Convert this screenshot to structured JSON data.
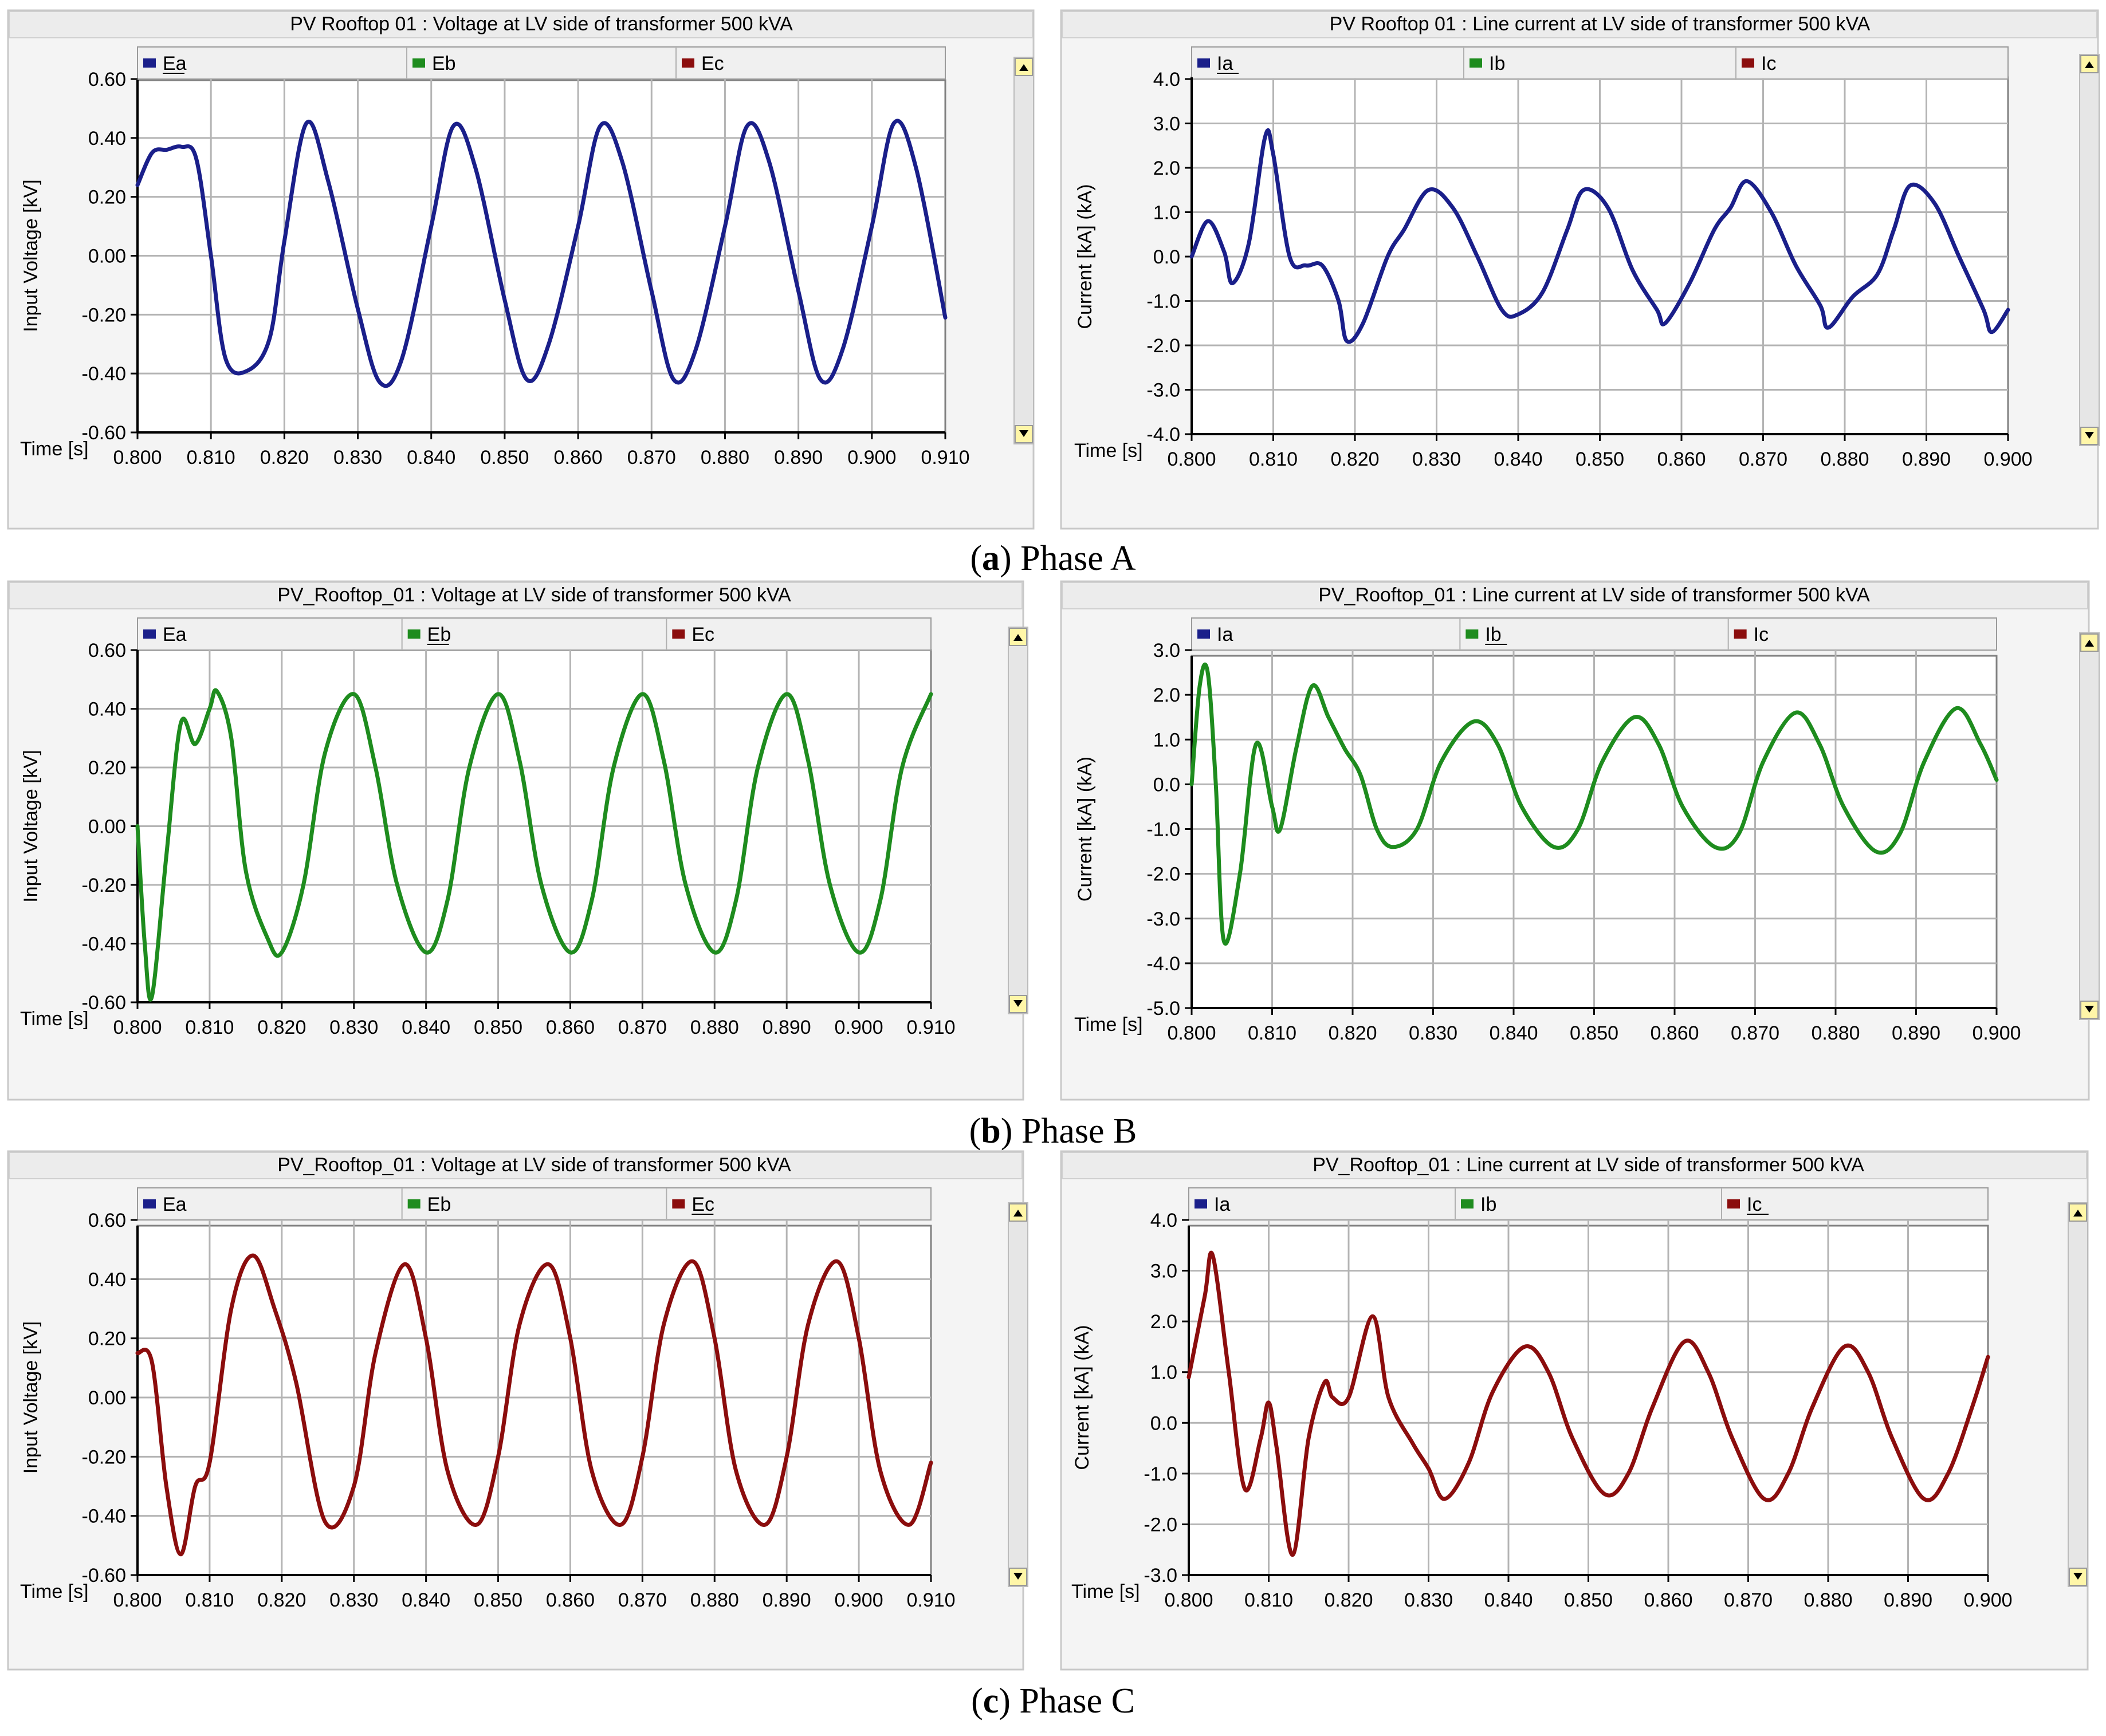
{
  "colors": {
    "a": "#1a1f8a",
    "b": "#1e8c1e",
    "c": "#8b0d0d"
  },
  "captions": [
    {
      "letter": "a",
      "text": " Phase A"
    },
    {
      "letter": "b",
      "text": " Phase B"
    },
    {
      "letter": "c",
      "text": " Phase C"
    }
  ],
  "chart_data": [
    {
      "type": "line",
      "title": "PV  Rooftop  01 : Voltage at LV side of transformer 500 kVA",
      "xlabel": "Time [s]",
      "ylabel": "Input Voltage [kV]",
      "xlim": [
        0.8,
        0.91
      ],
      "ylim": [
        -0.6,
        0.6
      ],
      "xticks": [
        "0.800",
        "0.810",
        "0.820",
        "0.830",
        "0.840",
        "0.850",
        "0.860",
        "0.870",
        "0.880",
        "0.890",
        "0.900",
        "0.910"
      ],
      "yticks": [
        "0.60",
        "0.40",
        "0.20",
        "0.00",
        "-0.20",
        "-0.40",
        "-0.60"
      ],
      "legend": [
        "Ea",
        "Eb",
        "Ec"
      ],
      "active": 0,
      "color_key": "a",
      "series": [
        {
          "name": "Ea",
          "x": [
            0.8,
            0.802,
            0.804,
            0.806,
            0.808,
            0.81,
            0.812,
            0.815,
            0.818,
            0.82,
            0.823,
            0.826,
            0.83,
            0.833,
            0.836,
            0.84,
            0.843,
            0.846,
            0.85,
            0.853,
            0.856,
            0.86,
            0.863,
            0.866,
            0.87,
            0.873,
            0.876,
            0.88,
            0.883,
            0.886,
            0.89,
            0.893,
            0.896,
            0.9,
            0.903,
            0.906,
            0.91
          ],
          "y": [
            0.24,
            0.35,
            0.36,
            0.37,
            0.33,
            0.0,
            -0.35,
            -0.39,
            -0.28,
            0.05,
            0.45,
            0.25,
            -0.18,
            -0.43,
            -0.35,
            0.1,
            0.44,
            0.3,
            -0.15,
            -0.42,
            -0.3,
            0.1,
            0.44,
            0.32,
            -0.12,
            -0.42,
            -0.32,
            0.1,
            0.44,
            0.32,
            -0.12,
            -0.42,
            -0.32,
            0.1,
            0.45,
            0.3,
            -0.21
          ]
        }
      ]
    },
    {
      "type": "line",
      "title": "PV  Rooftop  01 : Line current at LV side of transformer 500 kVA",
      "xlabel": "Time [s]",
      "ylabel": "Current [kA] (kA)",
      "xlim": [
        0.8,
        0.9
      ],
      "ylim": [
        -4.0,
        4.0
      ],
      "xticks": [
        "0.800",
        "0.810",
        "0.820",
        "0.830",
        "0.840",
        "0.850",
        "0.860",
        "0.870",
        "0.880",
        "0.890",
        "0.900"
      ],
      "yticks": [
        "4.0",
        "3.0",
        "2.0",
        "1.0",
        "0.0",
        "-1.0",
        "-2.0",
        "-3.0",
        "-4.0"
      ],
      "legend": [
        "Ia",
        "Ib",
        "Ic"
      ],
      "active": 0,
      "color_key": "a",
      "series": [
        {
          "name": "Ia",
          "x": [
            0.8,
            0.802,
            0.804,
            0.805,
            0.807,
            0.809,
            0.81,
            0.812,
            0.814,
            0.816,
            0.818,
            0.819,
            0.821,
            0.824,
            0.826,
            0.829,
            0.832,
            0.835,
            0.838,
            0.84,
            0.843,
            0.846,
            0.848,
            0.851,
            0.854,
            0.857,
            0.858,
            0.861,
            0.864,
            0.866,
            0.868,
            0.871,
            0.874,
            0.877,
            0.878,
            0.881,
            0.884,
            0.886,
            0.888,
            0.891,
            0.894,
            0.897,
            0.898,
            0.9
          ],
          "y": [
            0.0,
            0.8,
            0.1,
            -0.6,
            0.3,
            2.7,
            2.3,
            0.0,
            -0.2,
            -0.2,
            -1.0,
            -1.9,
            -1.5,
            0.0,
            0.6,
            1.5,
            1.1,
            0.0,
            -1.2,
            -1.3,
            -0.8,
            0.6,
            1.5,
            1.1,
            -0.3,
            -1.2,
            -1.5,
            -0.6,
            0.6,
            1.1,
            1.7,
            1.0,
            -0.2,
            -1.1,
            -1.6,
            -0.9,
            -0.4,
            0.6,
            1.6,
            1.2,
            0.0,
            -1.2,
            -1.7,
            -1.2
          ]
        }
      ]
    },
    {
      "type": "line",
      "title": "PV_Rooftop_01 : Voltage at LV side of transformer 500 kVA",
      "xlabel": "Time [s]",
      "ylabel": "Input Voltage [kV]",
      "xlim": [
        0.8,
        0.91
      ],
      "ylim": [
        -0.6,
        0.6
      ],
      "xticks": [
        "0.800",
        "0.810",
        "0.820",
        "0.830",
        "0.840",
        "0.850",
        "0.860",
        "0.870",
        "0.880",
        "0.890",
        "0.900",
        "0.910"
      ],
      "yticks": [
        "0.60",
        "0.40",
        "0.20",
        "0.00",
        "-0.20",
        "-0.40",
        "-0.60"
      ],
      "legend": [
        "Ea",
        "Eb",
        "Ec"
      ],
      "active": 1,
      "color_key": "b",
      "series": [
        {
          "name": "Eb",
          "x": [
            0.8,
            0.801,
            0.802,
            0.804,
            0.806,
            0.808,
            0.81,
            0.811,
            0.813,
            0.815,
            0.818,
            0.82,
            0.823,
            0.826,
            0.83,
            0.833,
            0.836,
            0.84,
            0.843,
            0.846,
            0.85,
            0.853,
            0.856,
            0.86,
            0.863,
            0.866,
            0.87,
            0.873,
            0.876,
            0.88,
            0.883,
            0.886,
            0.89,
            0.893,
            0.896,
            0.9,
            0.903,
            0.906,
            0.91
          ],
          "y": [
            0.0,
            -0.4,
            -0.58,
            -0.1,
            0.35,
            0.28,
            0.4,
            0.46,
            0.3,
            -0.15,
            -0.38,
            -0.43,
            -0.2,
            0.25,
            0.45,
            0.2,
            -0.2,
            -0.43,
            -0.25,
            0.2,
            0.45,
            0.22,
            -0.2,
            -0.43,
            -0.25,
            0.2,
            0.45,
            0.22,
            -0.2,
            -0.43,
            -0.25,
            0.2,
            0.45,
            0.22,
            -0.2,
            -0.43,
            -0.25,
            0.2,
            0.45
          ]
        }
      ]
    },
    {
      "type": "line",
      "title": "PV_Rooftop_01 : Line current at LV side of transformer 500 kVA",
      "xlabel": "Time [s]",
      "ylabel": "Current [kA] (kA)",
      "xlim": [
        0.8,
        0.9
      ],
      "ylim": [
        -5.0,
        3.0
      ],
      "xticks": [
        "0.800",
        "0.810",
        "0.820",
        "0.830",
        "0.840",
        "0.850",
        "0.860",
        "0.870",
        "0.880",
        "0.890",
        "0.900"
      ],
      "yticks": [
        "3.0",
        "2.0",
        "1.0",
        "0.0",
        "-1.0",
        "-2.0",
        "-3.0",
        "-4.0",
        "-5.0"
      ],
      "legend": [
        "Ia",
        "Ib",
        "Ic"
      ],
      "active": 1,
      "color_key": "b",
      "series": [
        {
          "name": "Ib",
          "x": [
            0.8,
            0.801,
            0.802,
            0.803,
            0.804,
            0.806,
            0.808,
            0.81,
            0.811,
            0.813,
            0.815,
            0.817,
            0.819,
            0.821,
            0.823,
            0.825,
            0.828,
            0.831,
            0.835,
            0.838,
            0.841,
            0.845,
            0.848,
            0.851,
            0.855,
            0.858,
            0.861,
            0.865,
            0.868,
            0.871,
            0.875,
            0.878,
            0.881,
            0.885,
            0.888,
            0.891,
            0.895,
            0.898,
            0.9
          ],
          "y": [
            0.0,
            2.2,
            2.5,
            0.0,
            -3.5,
            -2.0,
            0.9,
            -0.5,
            -1.0,
            0.8,
            2.2,
            1.5,
            0.8,
            0.2,
            -1.0,
            -1.4,
            -1.0,
            0.5,
            1.4,
            0.9,
            -0.5,
            -1.4,
            -1.0,
            0.5,
            1.5,
            0.9,
            -0.5,
            -1.4,
            -1.1,
            0.5,
            1.6,
            0.9,
            -0.5,
            -1.5,
            -1.1,
            0.5,
            1.7,
            0.9,
            0.1
          ]
        }
      ]
    },
    {
      "type": "line",
      "title": "PV_Rooftop_01 : Voltage at LV side of transformer 500 kVA",
      "xlabel": "Time [s]",
      "ylabel": "Input Voltage [kV]",
      "xlim": [
        0.8,
        0.91
      ],
      "ylim": [
        -0.6,
        0.6
      ],
      "xticks": [
        "0.800",
        "0.810",
        "0.820",
        "0.830",
        "0.840",
        "0.850",
        "0.860",
        "0.870",
        "0.880",
        "0.890",
        "0.900",
        "0.910"
      ],
      "yticks": [
        "0.60",
        "0.40",
        "0.20",
        "0.00",
        "-0.20",
        "-0.40",
        "-0.60"
      ],
      "legend": [
        "Ea",
        "Eb",
        "Ec"
      ],
      "active": 2,
      "color_key": "c",
      "series": [
        {
          "name": "Ec",
          "x": [
            0.8,
            0.802,
            0.804,
            0.806,
            0.808,
            0.81,
            0.813,
            0.816,
            0.819,
            0.822,
            0.826,
            0.83,
            0.833,
            0.837,
            0.84,
            0.843,
            0.847,
            0.85,
            0.853,
            0.857,
            0.86,
            0.863,
            0.867,
            0.87,
            0.873,
            0.877,
            0.88,
            0.883,
            0.887,
            0.89,
            0.893,
            0.897,
            0.9,
            0.903,
            0.907,
            0.91
          ],
          "y": [
            0.15,
            0.12,
            -0.3,
            -0.53,
            -0.3,
            -0.22,
            0.3,
            0.48,
            0.3,
            0.05,
            -0.42,
            -0.3,
            0.15,
            0.45,
            0.2,
            -0.25,
            -0.43,
            -0.2,
            0.25,
            0.45,
            0.2,
            -0.25,
            -0.43,
            -0.2,
            0.25,
            0.46,
            0.2,
            -0.25,
            -0.43,
            -0.2,
            0.25,
            0.46,
            0.2,
            -0.25,
            -0.43,
            -0.22
          ]
        }
      ]
    },
    {
      "type": "line",
      "title": "PV_Rooftop_01 : Line current at LV side of transformer 500 kVA",
      "xlabel": "Time [s]",
      "ylabel": "Current [kA] (kA)",
      "xlim": [
        0.8,
        0.9
      ],
      "ylim": [
        -3.0,
        4.0
      ],
      "xticks": [
        "0.800",
        "0.810",
        "0.820",
        "0.830",
        "0.840",
        "0.850",
        "0.860",
        "0.870",
        "0.880",
        "0.890",
        "0.900"
      ],
      "yticks": [
        "4.0",
        "3.0",
        "2.0",
        "1.0",
        "0.0",
        "-1.0",
        "-2.0",
        "-3.0"
      ],
      "legend": [
        "Ia",
        "Ib",
        "Ic"
      ],
      "active": 2,
      "color_key": "c",
      "series": [
        {
          "name": "Ic",
          "x": [
            0.8,
            0.802,
            0.803,
            0.805,
            0.807,
            0.809,
            0.81,
            0.811,
            0.813,
            0.815,
            0.817,
            0.818,
            0.82,
            0.823,
            0.825,
            0.828,
            0.83,
            0.832,
            0.835,
            0.838,
            0.842,
            0.845,
            0.848,
            0.852,
            0.855,
            0.858,
            0.862,
            0.865,
            0.868,
            0.872,
            0.875,
            0.878,
            0.882,
            0.885,
            0.888,
            0.892,
            0.895,
            0.898,
            0.9
          ],
          "y": [
            0.9,
            2.5,
            3.3,
            1.0,
            -1.3,
            -0.3,
            0.4,
            -0.5,
            -2.6,
            -0.3,
            0.8,
            0.5,
            0.5,
            2.1,
            0.5,
            -0.4,
            -0.9,
            -1.5,
            -0.8,
            0.6,
            1.5,
            1.0,
            -0.3,
            -1.4,
            -1.0,
            0.3,
            1.6,
            1.0,
            -0.3,
            -1.5,
            -1.0,
            0.3,
            1.5,
            1.0,
            -0.3,
            -1.5,
            -1.0,
            0.3,
            1.3
          ]
        }
      ]
    }
  ]
}
